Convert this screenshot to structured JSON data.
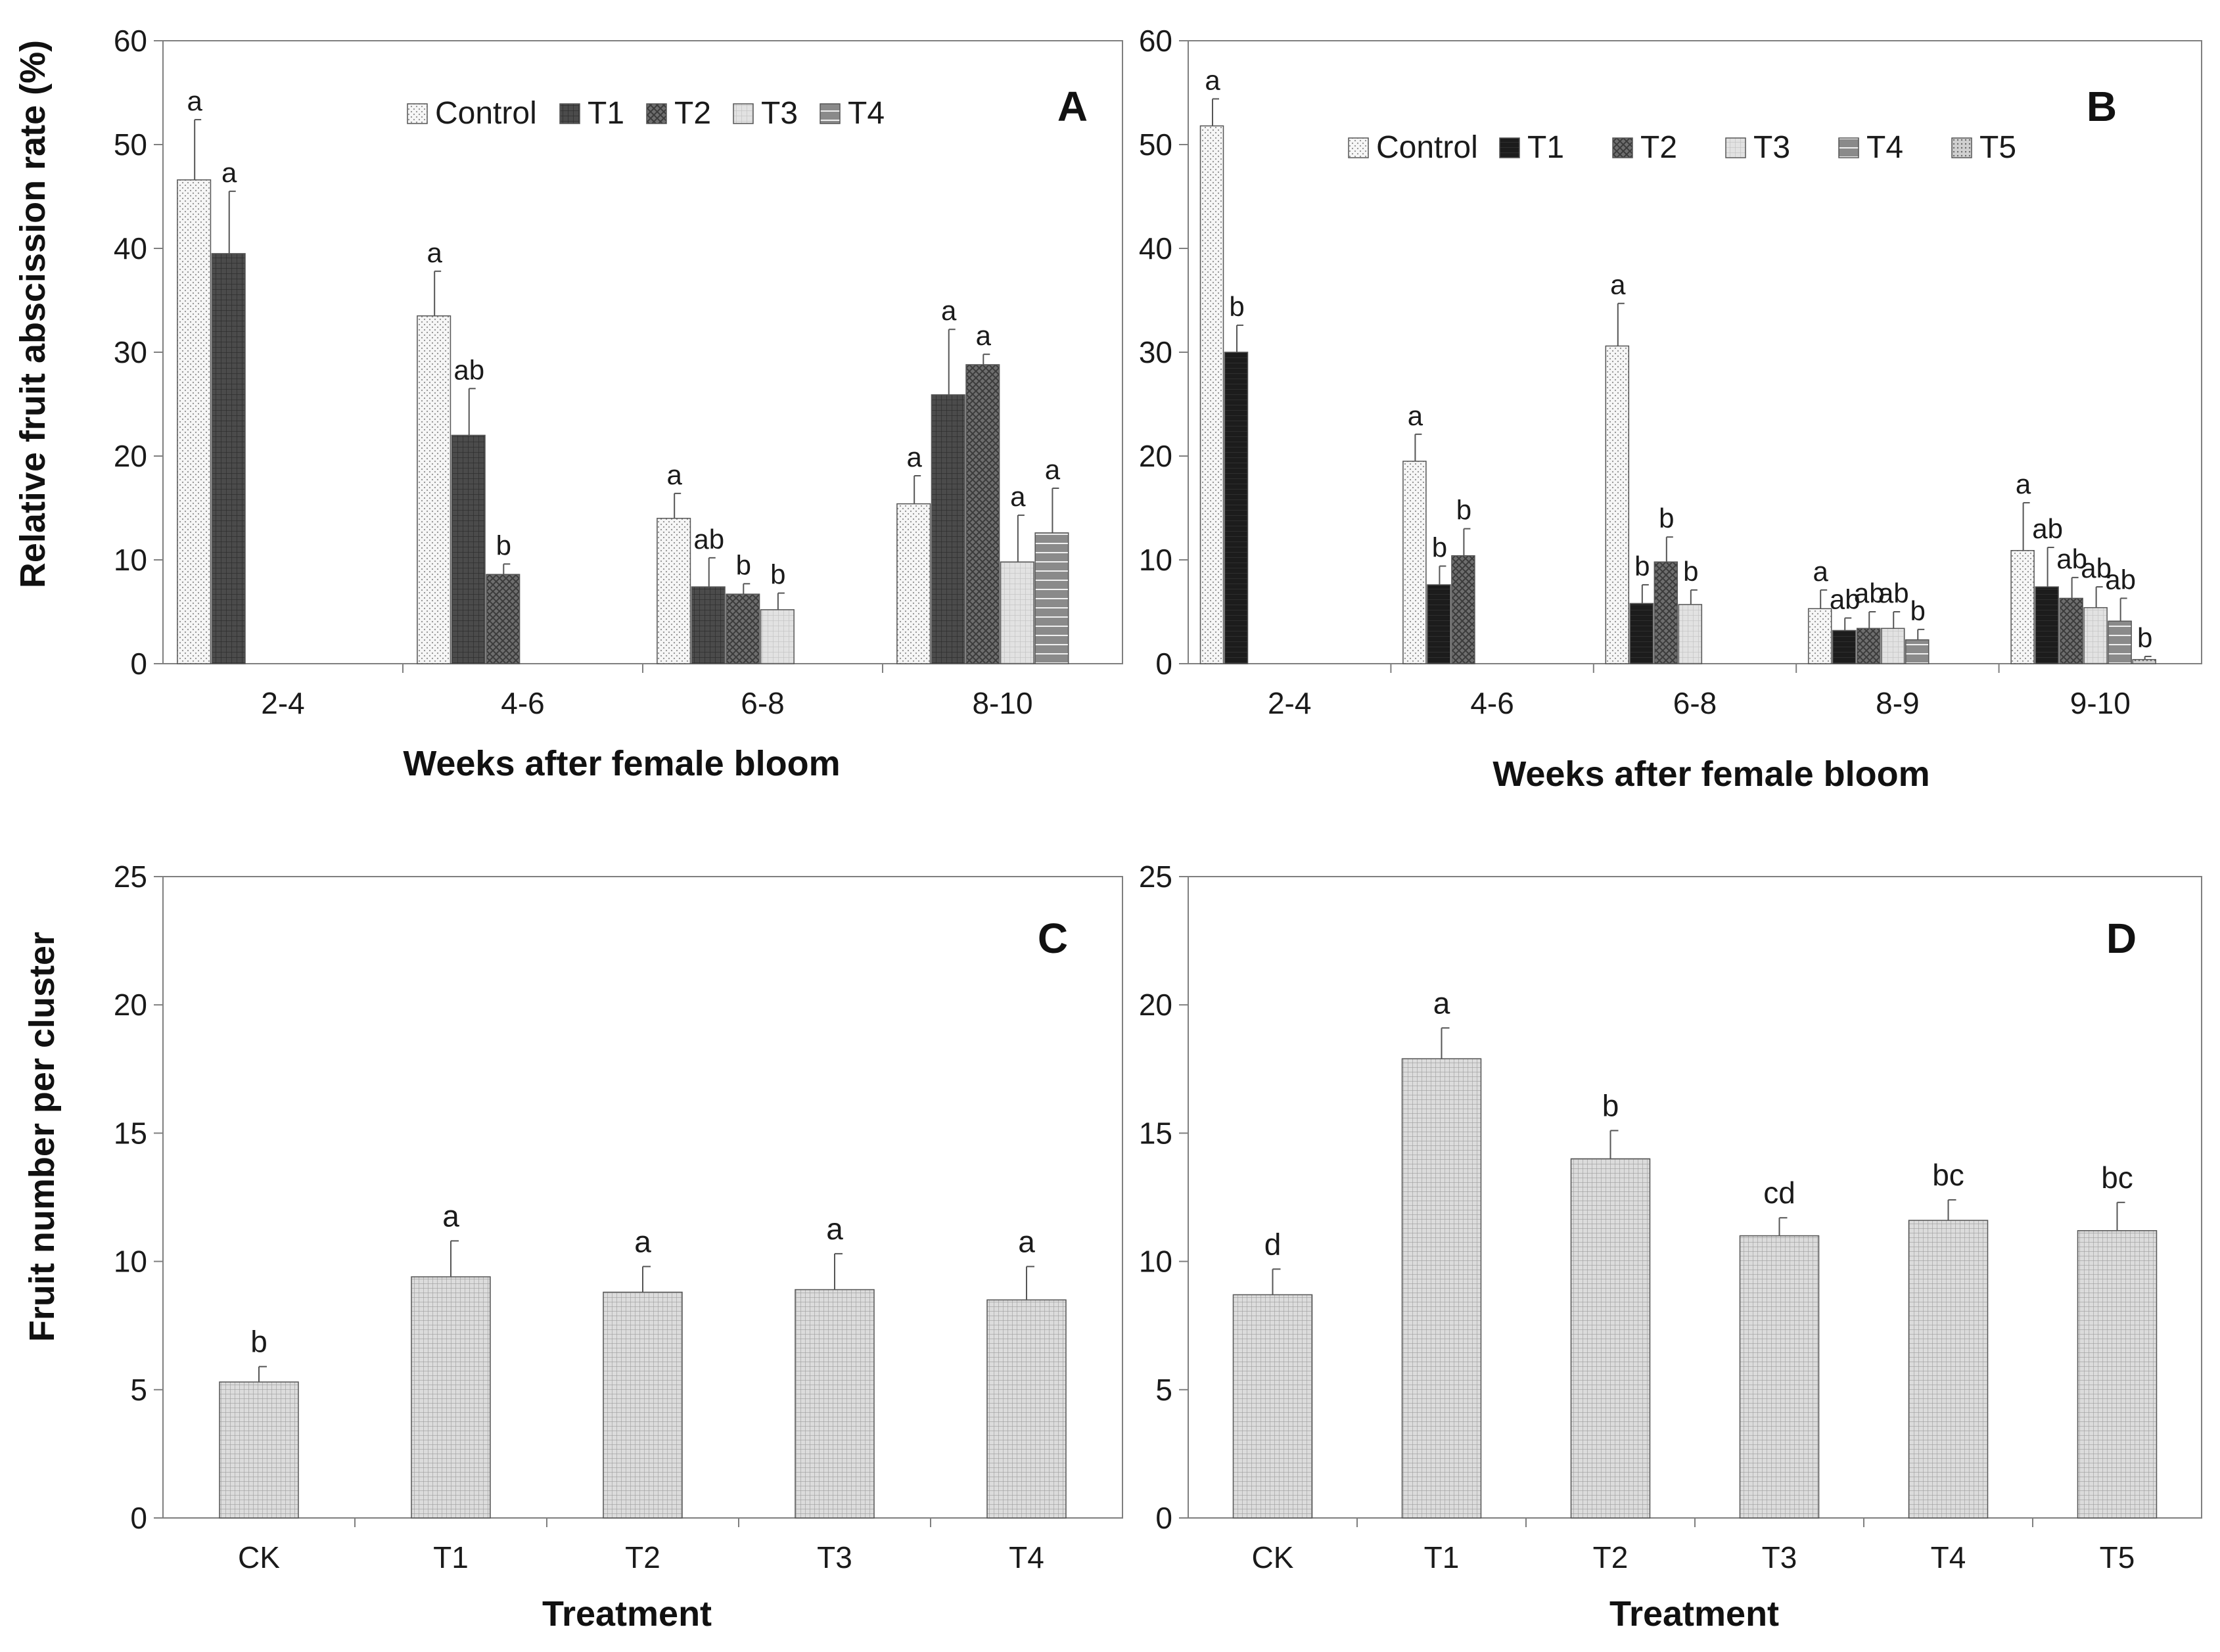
{
  "figure": {
    "ylabel_top": "Relative fruit abscission rate (%)",
    "ylabel_bottom": "Fruit number per cluster"
  },
  "colors": {
    "axis": "#7f7f7f",
    "text": "#1a1a1a",
    "errorbar": "#555555"
  },
  "chart_data": [
    {
      "panel": "A",
      "type": "bar",
      "xlabel": "Weeks after female bloom",
      "ylabel": "Relative fruit abscission rate (%)",
      "ylim": [
        0,
        60
      ],
      "yticks": [
        0,
        10,
        20,
        30,
        40,
        50,
        60
      ],
      "categories": [
        "2-4",
        "4-6",
        "6-8",
        "8-10"
      ],
      "legend_position": "top",
      "series": [
        {
          "name": "Control",
          "pattern": "dots-light",
          "values": [
            46.6,
            33.5,
            14.0,
            15.4
          ],
          "errors": [
            5.8,
            4.3,
            2.4,
            2.7
          ],
          "letters": [
            "a",
            "a",
            "a",
            "a"
          ]
        },
        {
          "name": "T1",
          "pattern": "dark-grid",
          "values": [
            39.5,
            22.0,
            7.4,
            25.9
          ],
          "errors": [
            6.0,
            4.5,
            2.8,
            6.3
          ],
          "letters": [
            "a",
            "ab",
            "ab",
            "a"
          ]
        },
        {
          "name": "T2",
          "pattern": "cross",
          "values": [
            null,
            8.6,
            6.7,
            28.8
          ],
          "errors": [
            null,
            1.0,
            1.0,
            1.0
          ],
          "letters": [
            "",
            "b",
            "b",
            "a"
          ]
        },
        {
          "name": "T3",
          "pattern": "light-grid",
          "values": [
            null,
            null,
            5.2,
            9.8
          ],
          "errors": [
            null,
            null,
            1.6,
            4.5
          ],
          "letters": [
            "",
            "",
            "b",
            "a"
          ]
        },
        {
          "name": "T4",
          "pattern": "hlines",
          "values": [
            null,
            null,
            null,
            12.6
          ],
          "errors": [
            null,
            null,
            null,
            4.3
          ],
          "letters": [
            "",
            "",
            "",
            "a"
          ]
        }
      ]
    },
    {
      "panel": "B",
      "type": "bar",
      "xlabel": "Weeks after female bloom",
      "ylim": [
        0,
        60
      ],
      "yticks": [
        0,
        10,
        20,
        30,
        40,
        50,
        60
      ],
      "categories": [
        "2-4",
        "4-6",
        "6-8",
        "8-9",
        "9-10"
      ],
      "legend_position": "top",
      "series": [
        {
          "name": "Control",
          "pattern": "dots-light",
          "values": [
            51.8,
            19.5,
            30.6,
            5.3,
            10.9
          ],
          "errors": [
            2.6,
            2.6,
            4.1,
            1.8,
            4.6
          ],
          "letters": [
            "a",
            "a",
            "a",
            "a",
            "a"
          ]
        },
        {
          "name": "T1",
          "pattern": "black-grid",
          "values": [
            30.0,
            7.6,
            5.8,
            3.2,
            7.4
          ],
          "errors": [
            2.6,
            1.8,
            1.8,
            1.2,
            3.8
          ],
          "letters": [
            "b",
            "b",
            "b",
            "ab",
            "ab"
          ]
        },
        {
          "name": "T2",
          "pattern": "cross",
          "values": [
            null,
            10.4,
            9.8,
            3.4,
            6.3
          ],
          "errors": [
            null,
            2.6,
            2.4,
            1.6,
            2.0
          ],
          "letters": [
            "",
            "b",
            "b",
            "ab",
            "ab"
          ]
        },
        {
          "name": "T3",
          "pattern": "light-grid",
          "values": [
            null,
            null,
            5.7,
            3.4,
            5.4
          ],
          "errors": [
            null,
            null,
            1.4,
            1.6,
            2.0
          ],
          "letters": [
            "",
            "",
            "b",
            "ab",
            "ab"
          ]
        },
        {
          "name": "T4",
          "pattern": "hlines",
          "values": [
            null,
            null,
            null,
            2.3,
            4.1
          ],
          "errors": [
            null,
            null,
            null,
            1.0,
            2.2
          ],
          "letters": [
            "",
            "",
            "",
            "b",
            "ab"
          ]
        },
        {
          "name": "T5",
          "pattern": "fine-dots",
          "values": [
            null,
            null,
            null,
            null,
            0.4
          ],
          "errors": [
            null,
            null,
            null,
            null,
            0.3
          ],
          "letters": [
            "",
            "",
            "",
            "",
            "b"
          ]
        }
      ]
    },
    {
      "panel": "C",
      "type": "bar",
      "xlabel": "Treatment",
      "ylabel": "Fruit number per cluster",
      "ylim": [
        0,
        25
      ],
      "yticks": [
        0,
        5,
        10,
        15,
        20,
        25
      ],
      "categories": [
        "CK",
        "T1",
        "T2",
        "T3",
        "T4"
      ],
      "values": [
        5.3,
        9.4,
        8.8,
        8.9,
        8.5
      ],
      "errors": [
        0.6,
        1.4,
        1.0,
        1.4,
        1.3
      ],
      "letters": [
        "b",
        "a",
        "a",
        "a",
        "a"
      ]
    },
    {
      "panel": "D",
      "type": "bar",
      "xlabel": "Treatment",
      "ylim": [
        0,
        25
      ],
      "yticks": [
        0,
        5,
        10,
        15,
        20,
        25
      ],
      "categories": [
        "CK",
        "T1",
        "T2",
        "T3",
        "T4",
        "T5"
      ],
      "values": [
        8.7,
        17.9,
        14.0,
        11.0,
        11.6,
        11.2
      ],
      "errors": [
        1.0,
        1.2,
        1.1,
        0.7,
        0.8,
        1.1
      ],
      "letters": [
        "d",
        "a",
        "b",
        "cd",
        "bc",
        "bc"
      ]
    }
  ]
}
